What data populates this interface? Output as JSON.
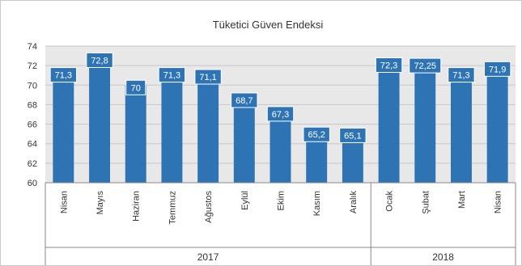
{
  "chart_data": {
    "type": "bar",
    "title": "Tüketici Güven Endeksi",
    "xlabel": "",
    "ylabel": "",
    "ylim": [
      60,
      74
    ],
    "yticks": [
      60,
      62,
      64,
      66,
      68,
      70,
      72,
      74
    ],
    "grid": true,
    "legend": "none",
    "categories": [
      "Nisan",
      "Mayıs",
      "Haziran",
      "Temmuz",
      "Ağustos",
      "Eylül",
      "Ekim",
      "Kasım",
      "Aralık",
      "Ocak",
      "Şubat",
      "Mart",
      "Nisan"
    ],
    "values": [
      71.3,
      72.8,
      70,
      71.3,
      71.1,
      68.7,
      67.3,
      65.2,
      65.1,
      72.3,
      72.25,
      71.3,
      71.9
    ],
    "data_labels": [
      "71,3",
      "72,8",
      "70",
      "71,3",
      "71,1",
      "68,7",
      "67,3",
      "65,2",
      "65,1",
      "72,3",
      "72,25",
      "71,3",
      "71,9"
    ],
    "groups": [
      {
        "label": "2017",
        "start": 0,
        "end": 8
      },
      {
        "label": "2018",
        "start": 9,
        "end": 12
      }
    ],
    "colors": {
      "bar": "#2e74b5",
      "label_bg": "#2e74b5",
      "plot_bg": "#e8e8e8",
      "grid": "#c7c7c7",
      "axis": "#888888"
    }
  }
}
